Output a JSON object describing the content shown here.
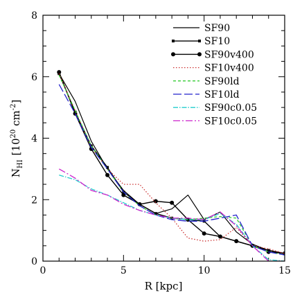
{
  "chart_data": {
    "type": "line",
    "xlabel": "R [kpc]",
    "ylabel_main": "N",
    "ylabel_sub": "HI",
    "ylabel_unit": "[10",
    "ylabel_exp": "20",
    "ylabel_unit2": " cm",
    "ylabel_exp2": "-2",
    "ylabel_close": "]",
    "xlim": [
      0,
      15
    ],
    "ylim": [
      0,
      8
    ],
    "xticks": [
      0,
      5,
      10,
      15
    ],
    "yticks": [
      0,
      2,
      4,
      6,
      8
    ],
    "legend_position": "top-right",
    "series": [
      {
        "name": "SF90",
        "color": "#000000",
        "dash": "",
        "width": 1.2,
        "marker": "none",
        "x": [
          1,
          2,
          3,
          4,
          5,
          6,
          7,
          8,
          9,
          10,
          11,
          12,
          13,
          14,
          15
        ],
        "y": [
          6.1,
          5.2,
          3.9,
          3.0,
          2.3,
          1.85,
          1.55,
          1.7,
          2.15,
          1.35,
          1.6,
          0.95,
          0.55,
          0.35,
          0.25
        ]
      },
      {
        "name": "SF10",
        "color": "#000000",
        "dash": "",
        "width": 1.4,
        "marker": "square",
        "x": [
          1,
          2,
          3,
          4,
          5,
          6,
          7,
          8,
          9,
          10,
          11,
          12,
          13,
          14,
          15
        ],
        "y": [
          6.1,
          4.85,
          3.75,
          3.05,
          2.25,
          1.85,
          1.55,
          1.4,
          1.35,
          1.3,
          0.8,
          0.65,
          0.5,
          0.35,
          0.25
        ]
      },
      {
        "name": "SF90v400",
        "color": "#000000",
        "dash": "",
        "width": 1.4,
        "marker": "circle",
        "x": [
          1,
          2,
          3,
          4,
          5,
          6,
          7,
          8,
          9,
          10,
          11,
          12,
          13,
          14,
          15
        ],
        "y": [
          6.15,
          4.8,
          3.65,
          2.8,
          2.15,
          1.85,
          1.95,
          1.9,
          1.35,
          0.9,
          0.8,
          0.65,
          0.5,
          0.3,
          0.25
        ]
      },
      {
        "name": "SF10v400",
        "color": "#cc3333",
        "dash": "1.5,2.5",
        "width": 1.3,
        "marker": "none",
        "x": [
          1,
          2,
          3,
          4,
          5,
          6,
          7,
          8,
          9,
          10,
          11,
          12,
          13,
          14,
          15
        ],
        "y": [
          6.1,
          4.9,
          3.7,
          3.0,
          2.5,
          2.5,
          1.9,
          1.4,
          0.75,
          0.65,
          0.7,
          1.1,
          0.5,
          0.4,
          0.25
        ]
      },
      {
        "name": "SF90ld",
        "color": "#33cc33",
        "dash": "4,3",
        "width": 1.3,
        "marker": "none",
        "x": [
          1,
          2,
          3,
          4,
          5,
          6,
          7,
          8,
          9,
          10,
          11,
          12,
          13,
          14,
          15
        ],
        "y": [
          6.05,
          4.9,
          3.75,
          3.0,
          2.25,
          1.8,
          1.5,
          1.4,
          1.35,
          1.4,
          1.45,
          1.4,
          0.5,
          0.3,
          0.2
        ]
      },
      {
        "name": "SF10ld",
        "color": "#2222cc",
        "dash": "12,4",
        "width": 1.3,
        "marker": "none",
        "x": [
          1,
          2,
          3,
          4,
          5,
          6,
          7,
          8,
          9,
          10,
          11,
          12,
          13,
          14,
          15
        ],
        "y": [
          5.75,
          4.8,
          3.7,
          3.0,
          2.25,
          1.8,
          1.5,
          1.35,
          1.3,
          1.3,
          1.4,
          1.5,
          0.5,
          0.3,
          0.2
        ]
      },
      {
        "name": "SF90c0.05",
        "color": "#22cccc",
        "dash": "7,2,1.5,2",
        "width": 1.3,
        "marker": "none",
        "x": [
          1,
          2,
          3,
          4,
          5,
          6,
          7,
          8,
          9,
          10,
          11,
          12,
          13,
          14,
          15
        ],
        "y": [
          2.8,
          2.65,
          2.35,
          2.15,
          1.9,
          1.65,
          1.5,
          1.4,
          1.35,
          1.35,
          1.55,
          1.2,
          0.5,
          0.05,
          0.0
        ]
      },
      {
        "name": "SF10c0.05",
        "color": "#cc22cc",
        "dash": "10,3,2,3",
        "width": 1.3,
        "marker": "none",
        "x": [
          1,
          2,
          3,
          4,
          5,
          6,
          7,
          8,
          9,
          10,
          11,
          12,
          13,
          14,
          15
        ],
        "y": [
          3.0,
          2.7,
          2.3,
          2.15,
          1.85,
          1.65,
          1.5,
          1.4,
          1.4,
          1.35,
          1.6,
          1.15,
          0.5,
          0.0,
          0.0
        ]
      }
    ]
  }
}
